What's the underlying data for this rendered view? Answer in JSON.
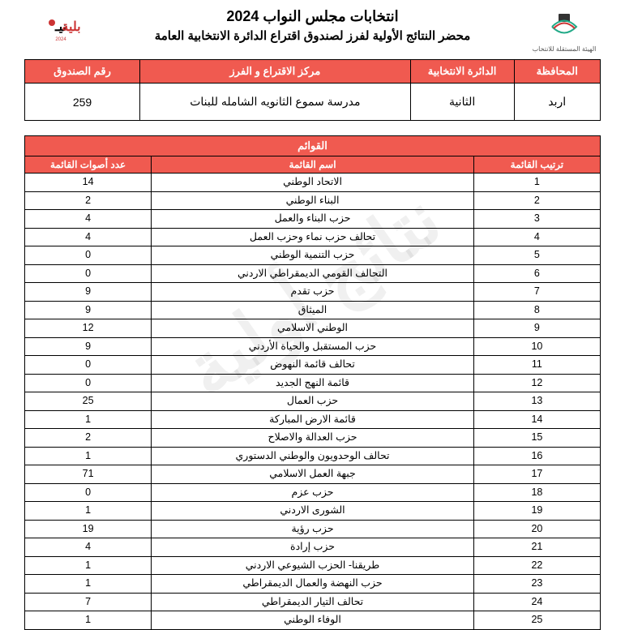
{
  "header": {
    "title1": "انتخابات مجلس النواب 2024",
    "title2": "محضر النتائج الأولية لفرز لصندوق اقتراع الدائرة الانتخابية العامة",
    "logo_right_text": "الهيئة المستقلة للانتخاب",
    "logo_left_text": "نيابية 2024"
  },
  "info": {
    "headers": {
      "governorate": "المحافظة",
      "district": "الدائرة الانتخابية",
      "center": "مركز الاقتراع و الفرز",
      "box": "رقم الصندوق"
    },
    "values": {
      "governorate": "اربد",
      "district": "الثانية",
      "center": "مدرسة سموع الثانويه الشامله للبنات",
      "box": "259"
    }
  },
  "lists": {
    "super_header": "القوائم",
    "headers": {
      "rank": "ترتيب القائمة",
      "name": "اسم القائمة",
      "votes": "عدد أصوات القائمة"
    },
    "rows": [
      {
        "rank": "1",
        "name": "الاتحاد الوطني",
        "votes": "14"
      },
      {
        "rank": "2",
        "name": "البناء الوطني",
        "votes": "2"
      },
      {
        "rank": "3",
        "name": "حزب البناء والعمل",
        "votes": "4"
      },
      {
        "rank": "4",
        "name": "تحالف حزب نماء وحزب العمل",
        "votes": "4"
      },
      {
        "rank": "5",
        "name": "حزب التنمية الوطني",
        "votes": "0"
      },
      {
        "rank": "6",
        "name": "التحالف القومي الديمقراطي الاردني",
        "votes": "0"
      },
      {
        "rank": "7",
        "name": "حزب تقدم",
        "votes": "9"
      },
      {
        "rank": "8",
        "name": "الميثاق",
        "votes": "9"
      },
      {
        "rank": "9",
        "name": "الوطني الاسلامي",
        "votes": "12"
      },
      {
        "rank": "10",
        "name": "حزب المستقبل والحياة الأردني",
        "votes": "9"
      },
      {
        "rank": "11",
        "name": "تحالف قائمة النهوض",
        "votes": "0"
      },
      {
        "rank": "12",
        "name": "قائمة النهج الجديد",
        "votes": "0"
      },
      {
        "rank": "13",
        "name": "حزب العمال",
        "votes": "25"
      },
      {
        "rank": "14",
        "name": "قائمة الارض المباركة",
        "votes": "1"
      },
      {
        "rank": "15",
        "name": "حزب العدالة والاصلاح",
        "votes": "2"
      },
      {
        "rank": "16",
        "name": "تحالف الوحدويون والوطني الدستوري",
        "votes": "1"
      },
      {
        "rank": "17",
        "name": "جبهة العمل الاسلامي",
        "votes": "71"
      },
      {
        "rank": "18",
        "name": "حزب عزم",
        "votes": "0"
      },
      {
        "rank": "19",
        "name": "الشورى الاردني",
        "votes": "1"
      },
      {
        "rank": "20",
        "name": "حزب رؤية",
        "votes": "19"
      },
      {
        "rank": "21",
        "name": "حزب إرادة",
        "votes": "4"
      },
      {
        "rank": "22",
        "name": "طريقنا- الحزب الشيوعي الاردني",
        "votes": "1"
      },
      {
        "rank": "23",
        "name": "حزب النهضة والعمال الديمقراطي",
        "votes": "1"
      },
      {
        "rank": "24",
        "name": "تحالف التيار الديمقراطي",
        "votes": "7"
      },
      {
        "rank": "25",
        "name": "الوفاء الوطني",
        "votes": "1"
      }
    ]
  },
  "watermark": "نتائج أولية",
  "colors": {
    "header_bg": "#f05a50",
    "header_fg": "#ffffff",
    "border": "#000000"
  }
}
